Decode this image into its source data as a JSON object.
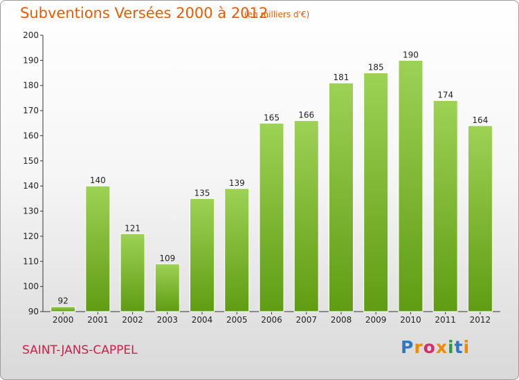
{
  "header": {
    "title": "Subventions Versées 2000 à 2012",
    "unit": "(en milliers d'€)"
  },
  "footer": {
    "commune": "SAINT-JANS-CAPPEL",
    "logo": {
      "text": "Proxiti",
      "letters": [
        {
          "ch": "P",
          "color": "#2d77c9"
        },
        {
          "ch": "r",
          "color": "#f08a00"
        },
        {
          "ch": "o",
          "color": "#d62d6a"
        },
        {
          "ch": "x",
          "color": "#f08a00"
        },
        {
          "ch": "i",
          "color": "#2d9b3c"
        },
        {
          "ch": "t",
          "color": "#2d77c9"
        },
        {
          "ch": "i",
          "color": "#f08a00"
        }
      ]
    }
  },
  "chart_data": {
    "type": "bar",
    "title": "Subventions Versées 2000 à 2012",
    "subtitle": "(en milliers d'€)",
    "xlabel": "",
    "ylabel": "",
    "categories": [
      "2000",
      "2001",
      "2002",
      "2003",
      "2004",
      "2005",
      "2006",
      "2007",
      "2008",
      "2009",
      "2010",
      "2011",
      "2012"
    ],
    "values": [
      92,
      140,
      121,
      109,
      135,
      139,
      165,
      166,
      181,
      185,
      190,
      174,
      164
    ],
    "ylim": [
      90,
      200
    ],
    "yticks": [
      90,
      100,
      110,
      120,
      130,
      140,
      150,
      160,
      170,
      180,
      190,
      200
    ],
    "grid": false,
    "legend": "none",
    "data_labels": true,
    "bar_color_top": "#9dd255",
    "bar_color_bottom": "#5f9c13"
  }
}
